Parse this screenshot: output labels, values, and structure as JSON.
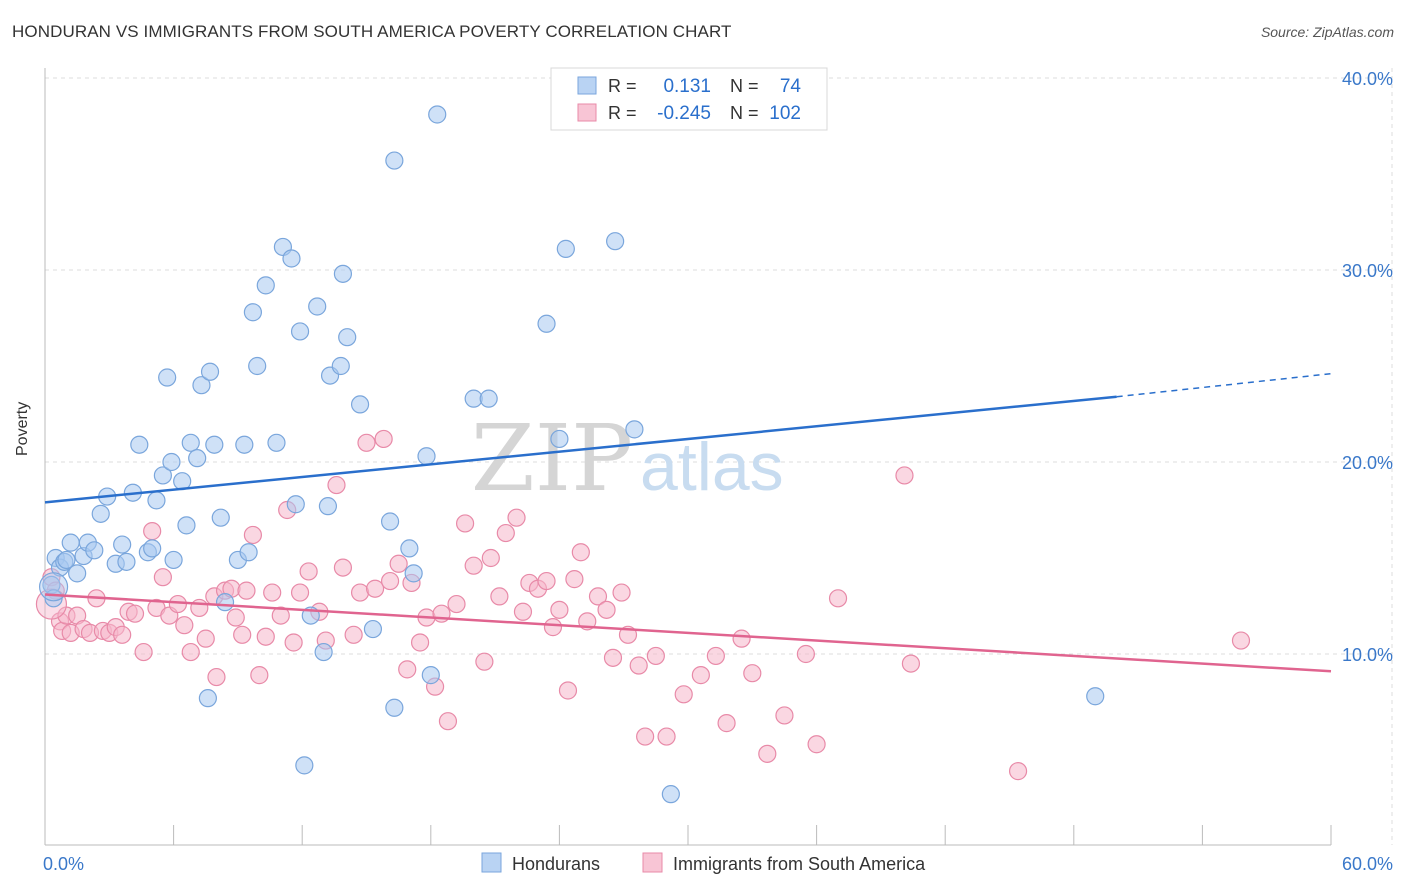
{
  "title": "HONDURAN VS IMMIGRANTS FROM SOUTH AMERICA POVERTY CORRELATION CHART",
  "source": "Source: ZipAtlas.com",
  "watermark": {
    "zip": "ZIP",
    "atlas": "atlas"
  },
  "colors": {
    "blue_fill": "#a8c8f0",
    "blue_stroke": "#7aa6dc",
    "blue_line": "#2a6fcc",
    "pink_fill": "#f6b6cb",
    "pink_stroke": "#e88aa8",
    "pink_line": "#e0648f",
    "axis_text": "#3a78c9",
    "grid": "#dddddd"
  },
  "chart_data": {
    "type": "scatter",
    "title": "HONDURAN VS IMMIGRANTS FROM SOUTH AMERICA POVERTY CORRELATION CHART",
    "xlabel": "",
    "ylabel": "Poverty",
    "xlim": [
      0,
      60
    ],
    "ylim": [
      0,
      42
    ],
    "x_tick_labels": [
      "0.0%",
      "60.0%"
    ],
    "y_ticks": [
      10,
      20,
      30,
      40
    ],
    "y_tick_labels": [
      "10.0%",
      "20.0%",
      "30.0%",
      "40.0%"
    ],
    "legend_stats": [
      {
        "r_label": "R =",
        "r_value": "0.131",
        "n_label": "N =",
        "n_value": "74"
      },
      {
        "r_label": "R =",
        "r_value": "-0.245",
        "n_label": "N =",
        "n_value": "102"
      }
    ],
    "series": [
      {
        "name": "Hondurans",
        "trend": {
          "x0": 0,
          "y0": 17.9,
          "x1": 50,
          "y1": 23.4,
          "dash_to_x": 60,
          "dash_to_y": 24.6
        },
        "points": [
          [
            0.5,
            15.0
          ],
          [
            0.7,
            14.5
          ],
          [
            0.9,
            14.8
          ],
          [
            1.2,
            15.8
          ],
          [
            1.5,
            14.2
          ],
          [
            1.8,
            15.1
          ],
          [
            2.0,
            15.8
          ],
          [
            2.3,
            15.4
          ],
          [
            2.6,
            17.3
          ],
          [
            2.9,
            18.2
          ],
          [
            3.3,
            14.7
          ],
          [
            3.6,
            15.7
          ],
          [
            3.8,
            14.8
          ],
          [
            4.1,
            18.4
          ],
          [
            4.4,
            20.9
          ],
          [
            4.8,
            15.3
          ],
          [
            5.0,
            15.5
          ],
          [
            5.2,
            18.0
          ],
          [
            5.5,
            19.3
          ],
          [
            5.7,
            24.4
          ],
          [
            5.9,
            20.0
          ],
          [
            6.0,
            14.9
          ],
          [
            6.4,
            19.0
          ],
          [
            6.6,
            16.7
          ],
          [
            6.8,
            21.0
          ],
          [
            7.1,
            20.2
          ],
          [
            7.3,
            24.0
          ],
          [
            7.6,
            7.7
          ],
          [
            7.7,
            24.7
          ],
          [
            7.9,
            20.9
          ],
          [
            8.2,
            17.1
          ],
          [
            8.4,
            12.7
          ],
          [
            9.0,
            14.9
          ],
          [
            9.3,
            20.9
          ],
          [
            9.5,
            15.3
          ],
          [
            9.7,
            27.8
          ],
          [
            9.9,
            25.0
          ],
          [
            10.3,
            29.2
          ],
          [
            10.8,
            21.0
          ],
          [
            11.1,
            31.2
          ],
          [
            11.5,
            30.6
          ],
          [
            11.7,
            17.8
          ],
          [
            11.9,
            26.8
          ],
          [
            12.1,
            4.2
          ],
          [
            12.4,
            12.0
          ],
          [
            12.7,
            28.1
          ],
          [
            13.0,
            10.1
          ],
          [
            13.2,
            17.7
          ],
          [
            13.3,
            24.5
          ],
          [
            13.8,
            25.0
          ],
          [
            13.9,
            29.8
          ],
          [
            14.1,
            26.5
          ],
          [
            14.7,
            23.0
          ],
          [
            15.3,
            11.3
          ],
          [
            16.1,
            16.9
          ],
          [
            16.3,
            7.2
          ],
          [
            16.3,
            35.7
          ],
          [
            17.0,
            15.5
          ],
          [
            17.2,
            14.2
          ],
          [
            17.8,
            20.3
          ],
          [
            18.0,
            8.9
          ],
          [
            18.3,
            38.1
          ],
          [
            20.0,
            23.3
          ],
          [
            20.7,
            23.3
          ],
          [
            23.4,
            27.2
          ],
          [
            24.0,
            21.2
          ],
          [
            24.3,
            31.1
          ],
          [
            26.6,
            31.5
          ],
          [
            27.5,
            21.7
          ],
          [
            29.2,
            2.7
          ],
          [
            49.0,
            7.8
          ],
          [
            0.3,
            13.6
          ],
          [
            1.0,
            14.9
          ],
          [
            0.4,
            12.9
          ]
        ]
      },
      {
        "name": "Immigrants from South America",
        "trend": {
          "x0": 0,
          "y0": 13.1,
          "x1": 60,
          "y1": 9.1
        },
        "points": [
          [
            0.3,
            14.0
          ],
          [
            0.5,
            13.3
          ],
          [
            0.7,
            11.7
          ],
          [
            0.8,
            11.2
          ],
          [
            1.0,
            12.0
          ],
          [
            1.2,
            11.1
          ],
          [
            1.5,
            12.0
          ],
          [
            1.8,
            11.3
          ],
          [
            2.1,
            11.1
          ],
          [
            2.4,
            12.9
          ],
          [
            2.7,
            11.2
          ],
          [
            3.0,
            11.1
          ],
          [
            3.3,
            11.4
          ],
          [
            3.6,
            11.0
          ],
          [
            3.9,
            12.2
          ],
          [
            4.2,
            12.1
          ],
          [
            4.6,
            10.1
          ],
          [
            5.0,
            16.4
          ],
          [
            5.2,
            12.4
          ],
          [
            5.5,
            14.0
          ],
          [
            5.8,
            12.0
          ],
          [
            6.2,
            12.6
          ],
          [
            6.5,
            11.5
          ],
          [
            6.8,
            10.1
          ],
          [
            7.2,
            12.4
          ],
          [
            7.5,
            10.8
          ],
          [
            7.9,
            13.0
          ],
          [
            8.0,
            8.8
          ],
          [
            8.4,
            13.3
          ],
          [
            8.7,
            13.4
          ],
          [
            8.9,
            11.9
          ],
          [
            9.2,
            11.0
          ],
          [
            9.4,
            13.3
          ],
          [
            9.7,
            16.2
          ],
          [
            10.0,
            8.9
          ],
          [
            10.3,
            10.9
          ],
          [
            10.6,
            13.2
          ],
          [
            11.0,
            12.0
          ],
          [
            11.3,
            17.5
          ],
          [
            11.6,
            10.6
          ],
          [
            11.9,
            13.2
          ],
          [
            12.3,
            14.3
          ],
          [
            12.8,
            12.2
          ],
          [
            13.1,
            10.7
          ],
          [
            13.6,
            18.8
          ],
          [
            13.9,
            14.5
          ],
          [
            14.4,
            11.0
          ],
          [
            14.7,
            13.2
          ],
          [
            15.0,
            21.0
          ],
          [
            15.4,
            13.4
          ],
          [
            15.8,
            21.2
          ],
          [
            16.1,
            13.8
          ],
          [
            16.5,
            14.7
          ],
          [
            16.9,
            9.2
          ],
          [
            17.1,
            13.7
          ],
          [
            17.5,
            10.6
          ],
          [
            17.8,
            11.9
          ],
          [
            18.2,
            8.3
          ],
          [
            18.5,
            12.1
          ],
          [
            18.8,
            6.5
          ],
          [
            19.2,
            12.6
          ],
          [
            19.6,
            16.8
          ],
          [
            20.0,
            14.6
          ],
          [
            20.5,
            9.6
          ],
          [
            20.8,
            15.0
          ],
          [
            21.2,
            13.0
          ],
          [
            21.5,
            16.3
          ],
          [
            22.0,
            17.1
          ],
          [
            22.3,
            12.2
          ],
          [
            22.6,
            13.7
          ],
          [
            23.0,
            13.4
          ],
          [
            23.4,
            13.8
          ],
          [
            23.7,
            11.4
          ],
          [
            24.0,
            12.3
          ],
          [
            24.4,
            8.1
          ],
          [
            24.7,
            13.9
          ],
          [
            25.0,
            15.3
          ],
          [
            25.3,
            11.7
          ],
          [
            25.8,
            13.0
          ],
          [
            26.2,
            12.3
          ],
          [
            26.5,
            9.8
          ],
          [
            26.9,
            13.2
          ],
          [
            27.2,
            11.0
          ],
          [
            27.7,
            9.4
          ],
          [
            28.0,
            5.7
          ],
          [
            28.5,
            9.9
          ],
          [
            29.0,
            5.7
          ],
          [
            29.8,
            7.9
          ],
          [
            30.6,
            8.9
          ],
          [
            31.3,
            9.9
          ],
          [
            31.8,
            6.4
          ],
          [
            32.5,
            10.8
          ],
          [
            33.0,
            9.0
          ],
          [
            33.7,
            4.8
          ],
          [
            34.5,
            6.8
          ],
          [
            35.5,
            10.0
          ],
          [
            36.0,
            5.3
          ],
          [
            37.0,
            12.9
          ],
          [
            40.1,
            19.3
          ],
          [
            40.4,
            9.5
          ],
          [
            45.4,
            3.9
          ],
          [
            55.8,
            10.7
          ]
        ]
      }
    ]
  },
  "legend": {
    "series1": "Hondurans",
    "series2": "Immigrants from South America"
  }
}
